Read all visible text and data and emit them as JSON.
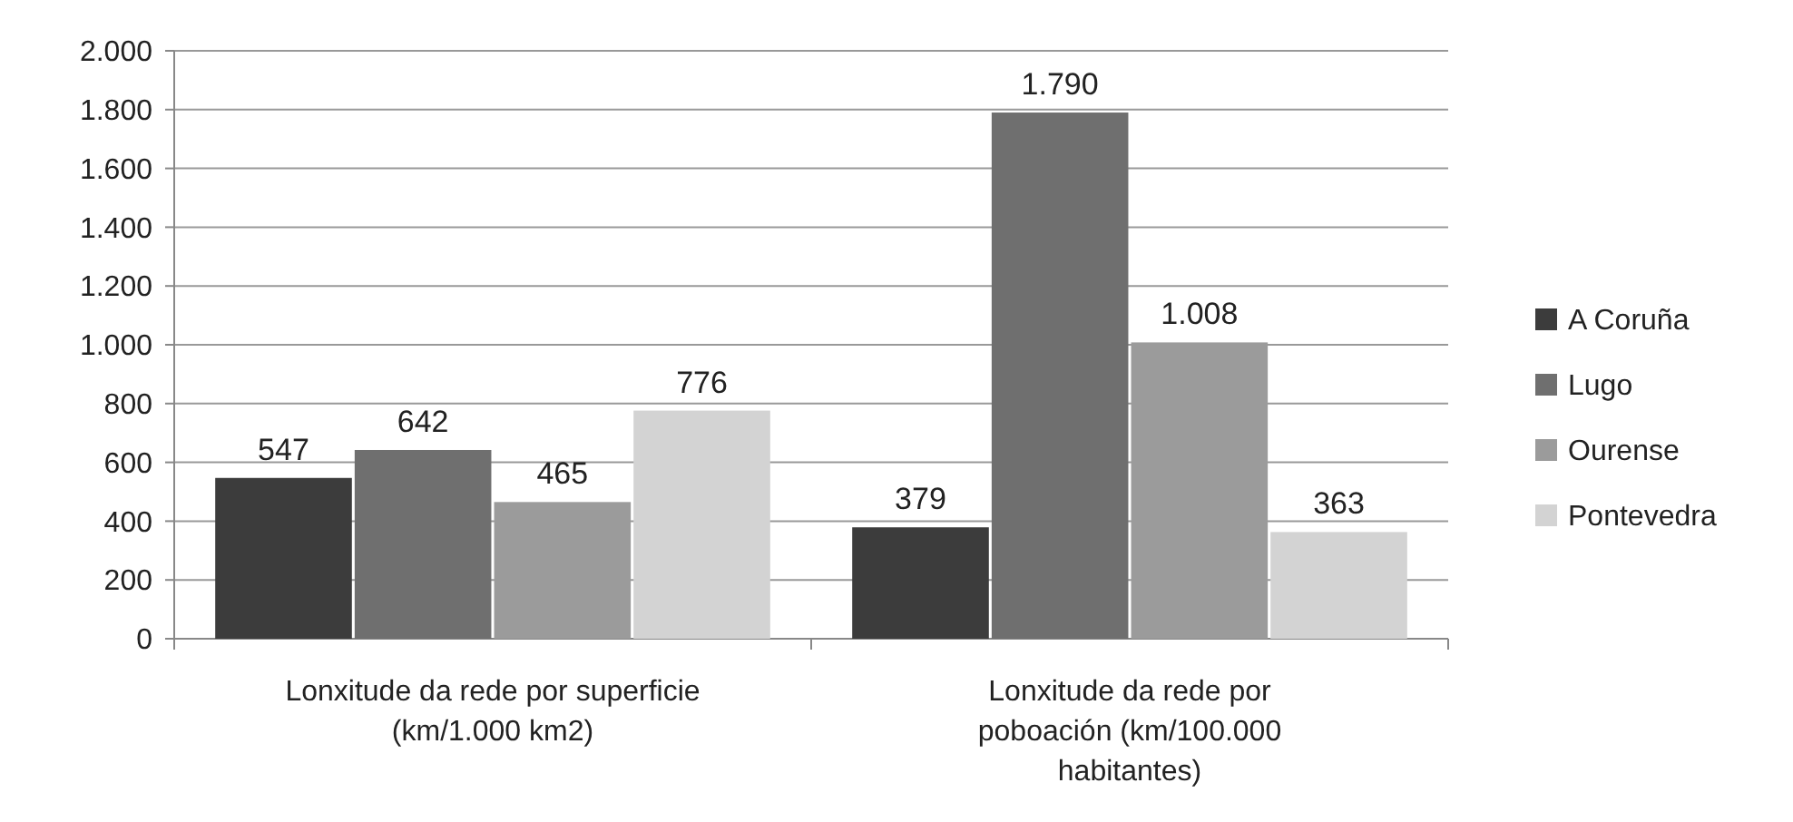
{
  "chart_data": {
    "type": "bar",
    "categories": [
      "Lonxitude da rede por superficie\n(km/1.000 km2)",
      "Lonxitude da rede por\npoboación (km/100.000\nhabitantes)"
    ],
    "series": [
      {
        "name": "A Coruña",
        "color": "#3c3c3c",
        "values": [
          547,
          379
        ],
        "value_labels": [
          "547",
          "379"
        ]
      },
      {
        "name": "Lugo",
        "color": "#6f6f6f",
        "values": [
          642,
          1790
        ],
        "value_labels": [
          "642",
          "1.790"
        ]
      },
      {
        "name": "Ourense",
        "color": "#9b9b9b",
        "values": [
          465,
          1008
        ],
        "value_labels": [
          "465",
          "1.008"
        ]
      },
      {
        "name": "Pontevedra",
        "color": "#d3d3d3",
        "values": [
          776,
          363
        ],
        "value_labels": [
          "776",
          "363"
        ]
      }
    ],
    "ylim": [
      0,
      2000
    ],
    "yticks": [
      {
        "value": 0,
        "label": "0"
      },
      {
        "value": 200,
        "label": "200"
      },
      {
        "value": 400,
        "label": "400"
      },
      {
        "value": 600,
        "label": "600"
      },
      {
        "value": 800,
        "label": "800"
      },
      {
        "value": 1000,
        "label": "1.000"
      },
      {
        "value": 1200,
        "label": "1.200"
      },
      {
        "value": 1400,
        "label": "1.400"
      },
      {
        "value": 1600,
        "label": "1.600"
      },
      {
        "value": 1800,
        "label": "1.800"
      },
      {
        "value": 2000,
        "label": "2.000"
      }
    ],
    "grid": "y",
    "legend": "right"
  }
}
